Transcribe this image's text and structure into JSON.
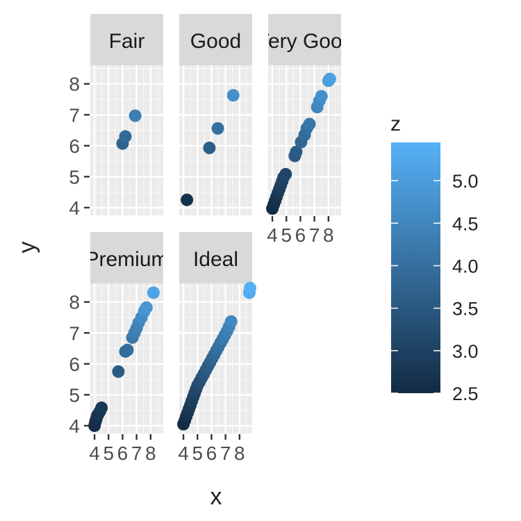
{
  "chart_data": {
    "type": "scatter",
    "facet_by": "cut",
    "xlabel": "x",
    "ylabel": "y",
    "xlim": [
      3.7,
      8.9
    ],
    "ylim": [
      3.75,
      8.6
    ],
    "x_ticks": [
      4,
      5,
      6,
      7,
      8
    ],
    "y_ticks": [
      4,
      5,
      6,
      7,
      8
    ],
    "grid": true,
    "legend": {
      "title": "z",
      "position": "right",
      "ticks": [
        2.5,
        3.0,
        3.5,
        4.0,
        4.5,
        5.0
      ],
      "tick_labels": [
        "2.5",
        "3.0",
        "3.5",
        "4.0",
        "4.5",
        "5.0"
      ],
      "range": [
        2.5,
        5.45
      ],
      "low_color": "#132B43",
      "high_color": "#56B1F7"
    },
    "panels": [
      {
        "label": "Fair",
        "points": [
          {
            "x": 6.0,
            "y": 6.07,
            "z": 3.75
          },
          {
            "x": 6.2,
            "y": 6.3,
            "z": 3.9
          },
          {
            "x": 6.9,
            "y": 6.97,
            "z": 4.35
          }
        ]
      },
      {
        "label": "Good",
        "points": [
          {
            "x": 4.25,
            "y": 4.25,
            "z": 2.6
          },
          {
            "x": 5.85,
            "y": 5.93,
            "z": 3.6
          },
          {
            "x": 6.45,
            "y": 6.56,
            "z": 4.0
          },
          {
            "x": 7.55,
            "y": 7.63,
            "z": 4.7
          }
        ]
      },
      {
        "label": "Very Good",
        "points": [
          {
            "x": 4.0,
            "y": 3.97,
            "z": 2.5
          },
          {
            "x": 4.1,
            "y": 4.1,
            "z": 2.55
          },
          {
            "x": 4.2,
            "y": 4.22,
            "z": 2.62
          },
          {
            "x": 4.3,
            "y": 4.35,
            "z": 2.7
          },
          {
            "x": 4.4,
            "y": 4.48,
            "z": 2.78
          },
          {
            "x": 4.5,
            "y": 4.6,
            "z": 2.85
          },
          {
            "x": 4.6,
            "y": 4.72,
            "z": 2.92
          },
          {
            "x": 4.7,
            "y": 4.85,
            "z": 3.0
          },
          {
            "x": 4.8,
            "y": 4.98,
            "z": 3.05
          },
          {
            "x": 4.95,
            "y": 5.08,
            "z": 3.1
          },
          {
            "x": 5.6,
            "y": 5.67,
            "z": 3.5
          },
          {
            "x": 5.7,
            "y": 5.8,
            "z": 3.55
          },
          {
            "x": 6.05,
            "y": 6.12,
            "z": 3.8
          },
          {
            "x": 6.3,
            "y": 6.35,
            "z": 3.92
          },
          {
            "x": 6.45,
            "y": 6.56,
            "z": 4.02
          },
          {
            "x": 6.65,
            "y": 6.7,
            "z": 4.15
          },
          {
            "x": 7.2,
            "y": 7.25,
            "z": 4.5
          },
          {
            "x": 7.35,
            "y": 7.45,
            "z": 4.6
          },
          {
            "x": 7.5,
            "y": 7.6,
            "z": 4.7
          },
          {
            "x": 8.0,
            "y": 8.1,
            "z": 5.0
          },
          {
            "x": 8.1,
            "y": 8.16,
            "z": 5.05
          }
        ]
      },
      {
        "label": "Premium",
        "points": [
          {
            "x": 4.0,
            "y": 4.0,
            "z": 2.5
          },
          {
            "x": 4.05,
            "y": 4.1,
            "z": 2.55
          },
          {
            "x": 4.1,
            "y": 4.18,
            "z": 2.58
          },
          {
            "x": 4.15,
            "y": 4.25,
            "z": 2.62
          },
          {
            "x": 4.2,
            "y": 4.33,
            "z": 2.66
          },
          {
            "x": 4.3,
            "y": 4.4,
            "z": 2.7
          },
          {
            "x": 4.4,
            "y": 4.48,
            "z": 2.75
          },
          {
            "x": 4.5,
            "y": 4.58,
            "z": 2.8
          },
          {
            "x": 5.7,
            "y": 5.75,
            "z": 3.55
          },
          {
            "x": 6.2,
            "y": 6.4,
            "z": 3.9
          },
          {
            "x": 6.35,
            "y": 6.45,
            "z": 3.95
          },
          {
            "x": 6.7,
            "y": 6.85,
            "z": 4.2
          },
          {
            "x": 6.85,
            "y": 7.0,
            "z": 4.3
          },
          {
            "x": 7.0,
            "y": 7.15,
            "z": 4.4
          },
          {
            "x": 7.15,
            "y": 7.33,
            "z": 4.5
          },
          {
            "x": 7.35,
            "y": 7.5,
            "z": 4.62
          },
          {
            "x": 7.55,
            "y": 7.7,
            "z": 4.75
          },
          {
            "x": 7.7,
            "y": 7.82,
            "z": 4.85
          },
          {
            "x": 8.2,
            "y": 8.3,
            "z": 5.15
          }
        ]
      },
      {
        "label": "Ideal",
        "points": [
          {
            "x": 4.0,
            "y": 4.05,
            "z": 2.5
          },
          {
            "x": 4.1,
            "y": 4.17,
            "z": 2.55
          },
          {
            "x": 4.2,
            "y": 4.3,
            "z": 2.62
          },
          {
            "x": 4.3,
            "y": 4.42,
            "z": 2.68
          },
          {
            "x": 4.4,
            "y": 4.55,
            "z": 2.75
          },
          {
            "x": 4.5,
            "y": 4.67,
            "z": 2.82
          },
          {
            "x": 4.6,
            "y": 4.8,
            "z": 2.9
          },
          {
            "x": 4.7,
            "y": 4.93,
            "z": 2.97
          },
          {
            "x": 4.8,
            "y": 5.05,
            "z": 3.03
          },
          {
            "x": 4.9,
            "y": 5.18,
            "z": 3.1
          },
          {
            "x": 5.0,
            "y": 5.3,
            "z": 3.17
          },
          {
            "x": 5.15,
            "y": 5.42,
            "z": 3.25
          },
          {
            "x": 5.3,
            "y": 5.55,
            "z": 3.33
          },
          {
            "x": 5.45,
            "y": 5.67,
            "z": 3.42
          },
          {
            "x": 5.6,
            "y": 5.8,
            "z": 3.5
          },
          {
            "x": 5.75,
            "y": 5.93,
            "z": 3.58
          },
          {
            "x": 5.9,
            "y": 6.05,
            "z": 3.67
          },
          {
            "x": 6.05,
            "y": 6.18,
            "z": 3.75
          },
          {
            "x": 6.2,
            "y": 6.3,
            "z": 3.84
          },
          {
            "x": 6.35,
            "y": 6.43,
            "z": 3.92
          },
          {
            "x": 6.5,
            "y": 6.55,
            "z": 4.0
          },
          {
            "x": 6.65,
            "y": 6.68,
            "z": 4.08
          },
          {
            "x": 6.8,
            "y": 6.8,
            "z": 4.17
          },
          {
            "x": 6.95,
            "y": 6.93,
            "z": 4.25
          },
          {
            "x": 7.1,
            "y": 7.05,
            "z": 4.34
          },
          {
            "x": 7.25,
            "y": 7.2,
            "z": 4.42
          },
          {
            "x": 7.4,
            "y": 7.37,
            "z": 4.55
          },
          {
            "x": 8.7,
            "y": 8.3,
            "z": 5.3
          },
          {
            "x": 8.75,
            "y": 8.45,
            "z": 5.4
          }
        ]
      }
    ]
  }
}
